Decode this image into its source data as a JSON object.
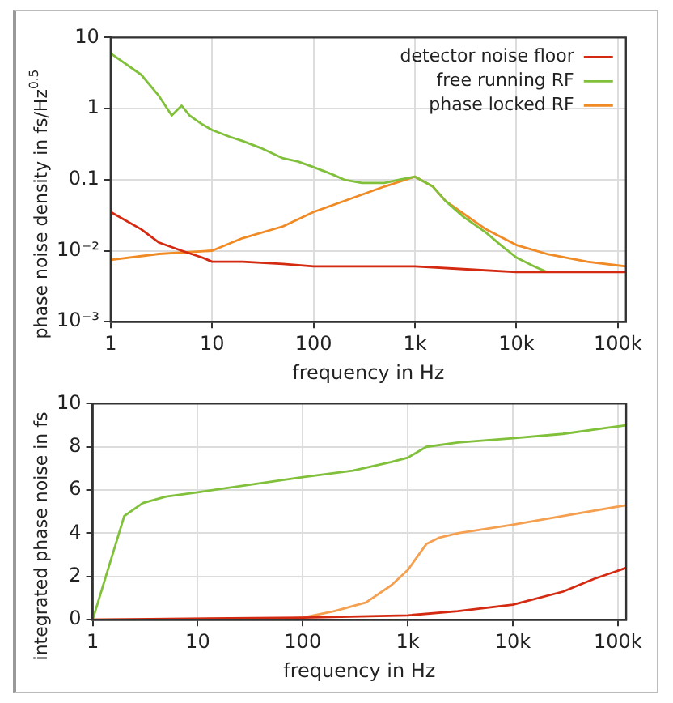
{
  "chart_data": [
    {
      "type": "line",
      "xlabel": "frequency in Hz",
      "ylabel": "phase noise density in fs/Hz$^{0.5}$",
      "log": "xy",
      "grid": true,
      "legend": "top right",
      "marker": "none",
      "line_style": "solid",
      "xlim": [
        1,
        120000
      ],
      "xticks": [
        1,
        10,
        100,
        {
          "value": 1000,
          "label": "1k"
        },
        {
          "value": 10000,
          "label": "10k"
        },
        {
          "value": 100000,
          "label": "100k"
        }
      ],
      "ylim": [
        0.001,
        10
      ],
      "yticks": [
        {
          "value": 0.001,
          "label": "10⁻³"
        },
        {
          "value": 0.01,
          "label": "10⁻²"
        },
        0.1,
        1,
        10
      ],
      "series": [
        {
          "name": "detector noise floor",
          "color": "#d42a12",
          "x": [
            1,
            2,
            3,
            5,
            8,
            10,
            20,
            50,
            100,
            300,
            1000,
            3000,
            10000,
            30000,
            120000
          ],
          "values": [
            0.035,
            0.02,
            0.013,
            0.01,
            0.008,
            0.007,
            0.007,
            0.0065,
            0.006,
            0.006,
            0.006,
            0.0055,
            0.005,
            0.005,
            0.005
          ]
        },
        {
          "name": "free running RF",
          "color": "#80c03a",
          "x": [
            1,
            2,
            3,
            4,
            5,
            6,
            8,
            10,
            15,
            20,
            30,
            50,
            70,
            100,
            150,
            200,
            300,
            500,
            700,
            1000,
            1500,
            2000,
            3000,
            5000,
            7000,
            10000,
            15000,
            20000
          ],
          "values": [
            6,
            3,
            1.5,
            0.8,
            1.1,
            0.8,
            0.6,
            0.5,
            0.4,
            0.35,
            0.28,
            0.2,
            0.18,
            0.15,
            0.12,
            0.1,
            0.09,
            0.09,
            0.1,
            0.11,
            0.08,
            0.05,
            0.03,
            0.018,
            0.012,
            0.008,
            0.006,
            0.005
          ]
        },
        {
          "name": "phase locked RF",
          "color": "#f08a24",
          "x": [
            1,
            3,
            10,
            20,
            50,
            100,
            200,
            500,
            1000,
            1500,
            2000,
            5000,
            10000,
            20000,
            50000,
            120000
          ],
          "values": [
            0.0074,
            0.009,
            0.01,
            0.015,
            0.022,
            0.035,
            0.05,
            0.08,
            0.11,
            0.08,
            0.05,
            0.02,
            0.012,
            0.009,
            0.007,
            0.006
          ]
        }
      ]
    },
    {
      "type": "line",
      "xlabel": "frequency in Hz",
      "ylabel": "integrated phase noise in fs",
      "log": "x",
      "grid": true,
      "marker": "none",
      "line_style": "solid",
      "xlim": [
        1,
        120000
      ],
      "xticks": [
        1,
        10,
        100,
        {
          "value": 1000,
          "label": "1k"
        },
        {
          "value": 10000,
          "label": "10k"
        },
        {
          "value": 100000,
          "label": "100k"
        }
      ],
      "ylim": [
        0,
        10
      ],
      "yticks": [
        0,
        2,
        4,
        6,
        8,
        10
      ],
      "series": [
        {
          "color": "#d42a12",
          "x": [
            1,
            100,
            1000,
            3000,
            10000,
            30000,
            60000,
            120000
          ],
          "values": [
            0,
            0.1,
            0.2,
            0.4,
            0.7,
            1.3,
            1.9,
            2.4
          ]
        },
        {
          "color": "#80c03a",
          "x": [
            1,
            2,
            3,
            5,
            10,
            100,
            300,
            700,
            1000,
            1500,
            3000,
            10000,
            30000,
            120000
          ],
          "values": [
            0,
            4.8,
            5.4,
            5.7,
            5.9,
            6.6,
            6.9,
            7.3,
            7.5,
            8,
            8.2,
            8.4,
            8.6,
            9
          ]
        },
        {
          "color": "#f5a050",
          "x": [
            1,
            50,
            100,
            200,
            400,
            700,
            1000,
            1500,
            2000,
            3000,
            10000,
            30000,
            120000
          ],
          "values": [
            0,
            0,
            0.1,
            0.4,
            0.8,
            1.6,
            2.3,
            3.5,
            3.8,
            4,
            4.4,
            4.8,
            5.3
          ]
        }
      ]
    }
  ]
}
